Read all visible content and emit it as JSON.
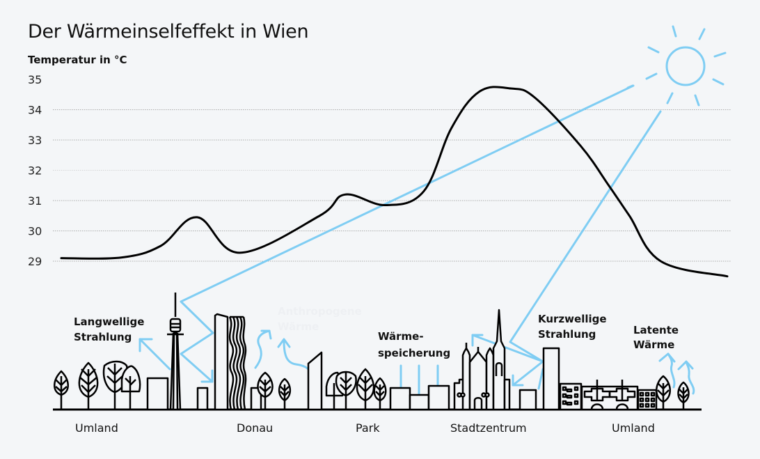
{
  "chart_data": {
    "type": "line",
    "title": "Der Wärmeinselfeffekt in Wien",
    "xlabel": "",
    "ylabel": "Temperatur in °C",
    "ylim": [
      28.3,
      35
    ],
    "yticks": [
      35,
      34,
      33,
      32,
      31,
      30,
      29
    ],
    "grid": true,
    "x_positions_relative": "0 = left edge (Umland), 1 = right edge (Umland)",
    "x": [
      0.0,
      0.09,
      0.149,
      0.204,
      0.268,
      0.388,
      0.426,
      0.487,
      0.544,
      0.586,
      0.628,
      0.675,
      0.711,
      0.78,
      0.822,
      0.853,
      0.9,
      1.0
    ],
    "series": [
      {
        "name": "Temperatur",
        "color": "#000000",
        "values": [
          29.1,
          29.12,
          29.5,
          30.45,
          29.28,
          30.5,
          31.2,
          30.85,
          31.3,
          33.4,
          34.6,
          34.7,
          34.4,
          32.8,
          31.5,
          30.5,
          29.0,
          28.5
        ]
      }
    ],
    "regions": [
      "Umland",
      "Donau",
      "Park",
      "Stadtzentrum",
      "Umland"
    ],
    "annotations": [
      {
        "text": "Langwellige Strahlung"
      },
      {
        "text": "Anthropogene Wärme",
        "faint": true
      },
      {
        "text": "Wärme-speicherung"
      },
      {
        "text": "Kurzwellige Strahlung"
      },
      {
        "text": "Latente Wärme"
      }
    ]
  },
  "labels": {
    "title": "Der Wärmeinselfeffekt in Wien",
    "ylabel": "Temperatur in °C",
    "annotations": {
      "langwellig_1": "Langwellige",
      "langwellig_2": "Strahlung",
      "anthropogen_1": "Anthropogene",
      "anthropogen_2": "Wärme",
      "speicher_1": "Wärme-",
      "speicher_2": "speicherung",
      "kurzwellig_1": "Kurzwellige",
      "kurzwellig_2": "Strahlung",
      "latent_1": "Latente",
      "latent_2": "Wärme"
    },
    "regions": [
      "Umland",
      "Donau",
      "Park",
      "Stadtzentrum",
      "Umland"
    ]
  },
  "colors": {
    "background": "#f4f6f8",
    "line": "#000000",
    "accent_blue": "#7fcdf3",
    "grid": "#9a9a9a",
    "ink": "#111111"
  }
}
